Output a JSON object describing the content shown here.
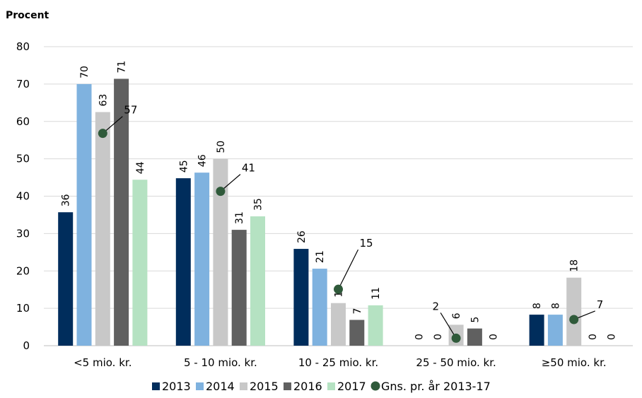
{
  "chart_data": {
    "type": "bar",
    "ylabel": "Procent",
    "ylim": [
      0,
      80
    ],
    "yticks": [
      0,
      10,
      20,
      30,
      40,
      50,
      60,
      70,
      80
    ],
    "grid": true,
    "legend_position": "bottom",
    "categories": [
      "<5 mio. kr.",
      "5 - 10 mio. kr.",
      "10 - 25 mio. kr.",
      "25 - 50 mio. kr.",
      "≥50 mio. kr."
    ],
    "series": [
      {
        "name": "2013",
        "color": "#002d5c",
        "values": [
          35.7,
          44.8,
          25.9,
          0,
          8.3
        ],
        "labels": [
          "36",
          "45",
          "26",
          "0",
          "8"
        ]
      },
      {
        "name": "2014",
        "color": "#7fb2df",
        "values": [
          70.0,
          46.3,
          20.6,
          0,
          8.3
        ],
        "labels": [
          "70",
          "46",
          "21",
          "0",
          "8"
        ]
      },
      {
        "name": "2015",
        "color": "#c8c8c8",
        "values": [
          62.5,
          50.0,
          11.4,
          5.6,
          18.2
        ],
        "labels": [
          "63",
          "50",
          "11",
          "6",
          "18"
        ]
      },
      {
        "name": "2016",
        "color": "#606060",
        "values": [
          71.4,
          31.0,
          6.9,
          4.6,
          0
        ],
        "labels": [
          "71",
          "31",
          "7",
          "5",
          "0"
        ]
      },
      {
        "name": "2017",
        "color": "#b5e2c2",
        "values": [
          44.4,
          34.6,
          10.8,
          0,
          0
        ],
        "labels": [
          "44",
          "35",
          "11",
          "0",
          "0"
        ]
      }
    ],
    "average": {
      "name": "Gns. pr. år 2013-17",
      "color": "#2f5a3a",
      "values": [
        56.8,
        41.3,
        15.1,
        2.0,
        7.0
      ],
      "labels": [
        "57",
        "41",
        "15",
        "2",
        "7"
      ]
    }
  }
}
